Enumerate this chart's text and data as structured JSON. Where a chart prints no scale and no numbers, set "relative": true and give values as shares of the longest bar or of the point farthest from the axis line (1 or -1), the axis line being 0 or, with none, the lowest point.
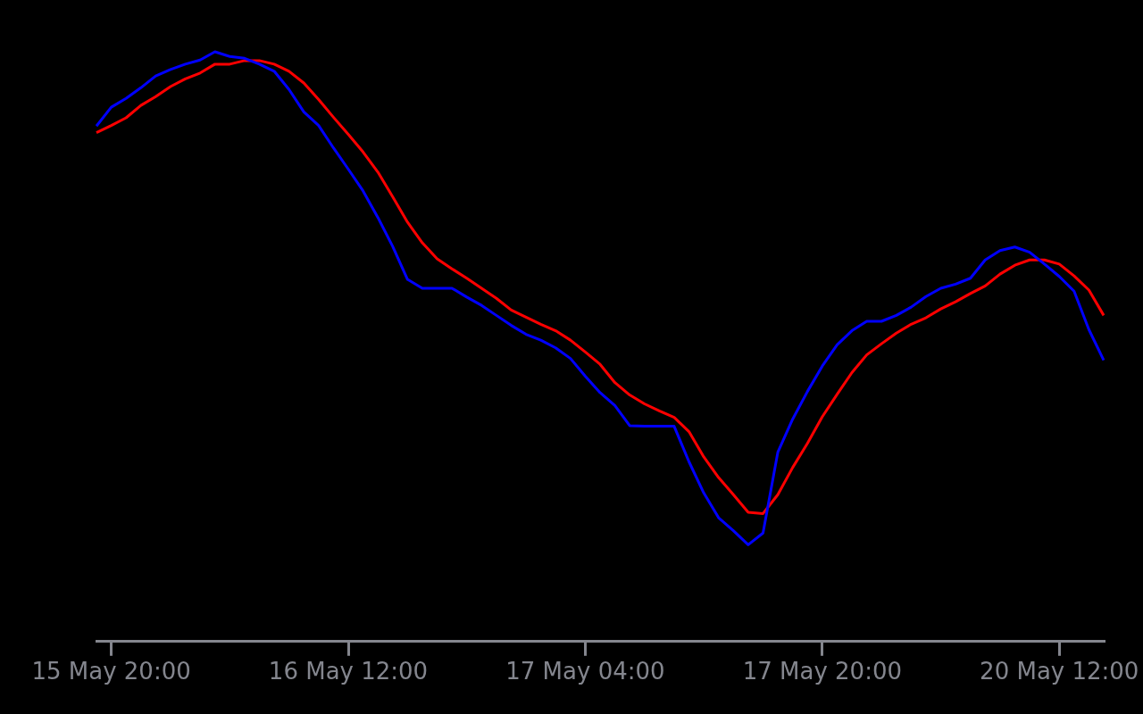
{
  "chart_data": {
    "type": "line",
    "relative": true,
    "grid": false,
    "legend": false,
    "marker": "none",
    "line_style": "solid",
    "categories": [
      null,
      "15 May 20:00",
      null,
      null,
      null,
      null,
      null,
      null,
      null,
      null,
      null,
      null,
      null,
      null,
      null,
      null,
      null,
      "16 May 12:00",
      null,
      null,
      null,
      null,
      null,
      null,
      null,
      null,
      null,
      null,
      null,
      null,
      null,
      null,
      null,
      "17 May 04:00",
      null,
      null,
      null,
      null,
      null,
      null,
      null,
      null,
      null,
      null,
      null,
      null,
      null,
      null,
      null,
      "17 May 20:00",
      null,
      null,
      null,
      null,
      null,
      null,
      null,
      null,
      null,
      null,
      null,
      null,
      null,
      null,
      null,
      "20 May 12:00",
      null,
      null,
      null
    ],
    "series": [
      {
        "color": "#0000ff",
        "values": [
          0.874,
          0.906,
          0.921,
          0.939,
          0.959,
          0.97,
          0.979,
          0.986,
          1,
          0.992,
          0.989,
          0.979,
          0.967,
          0.936,
          0.898,
          0.875,
          0.837,
          0.801,
          0.764,
          0.719,
          0.67,
          0.614,
          0.599,
          0.599,
          0.599,
          0.584,
          0.57,
          0.553,
          0.536,
          0.521,
          0.511,
          0.498,
          0.48,
          0.45,
          0.422,
          0.4,
          0.366,
          0.365,
          0.365,
          0.365,
          0.305,
          0.252,
          0.21,
          0.188,
          0.164,
          0.184,
          0.321,
          0.377,
          0.424,
          0.467,
          0.503,
          0.527,
          0.543,
          0.543,
          0.553,
          0.567,
          0.585,
          0.599,
          0.606,
          0.616,
          0.647,
          0.663,
          0.669,
          0.66,
          0.64,
          0.619,
          0.594,
          0.529,
          0.477
        ]
      },
      {
        "color": "#ff0000",
        "values": [
          0.863,
          0.875,
          0.888,
          0.909,
          0.924,
          0.941,
          0.954,
          0.964,
          0.979,
          0.979,
          0.985,
          0.985,
          0.979,
          0.967,
          0.947,
          0.919,
          0.889,
          0.86,
          0.83,
          0.796,
          0.754,
          0.711,
          0.676,
          0.649,
          0.632,
          0.616,
          0.599,
          0.582,
          0.562,
          0.55,
          0.538,
          0.527,
          0.511,
          0.491,
          0.47,
          0.439,
          0.418,
          0.403,
          0.391,
          0.38,
          0.356,
          0.313,
          0.278,
          0.249,
          0.219,
          0.217,
          0.249,
          0.295,
          0.336,
          0.381,
          0.419,
          0.456,
          0.486,
          0.505,
          0.523,
          0.538,
          0.549,
          0.564,
          0.576,
          0.59,
          0.603,
          0.623,
          0.638,
          0.647,
          0.647,
          0.64,
          0.62,
          0.596,
          0.553
        ]
      }
    ]
  }
}
